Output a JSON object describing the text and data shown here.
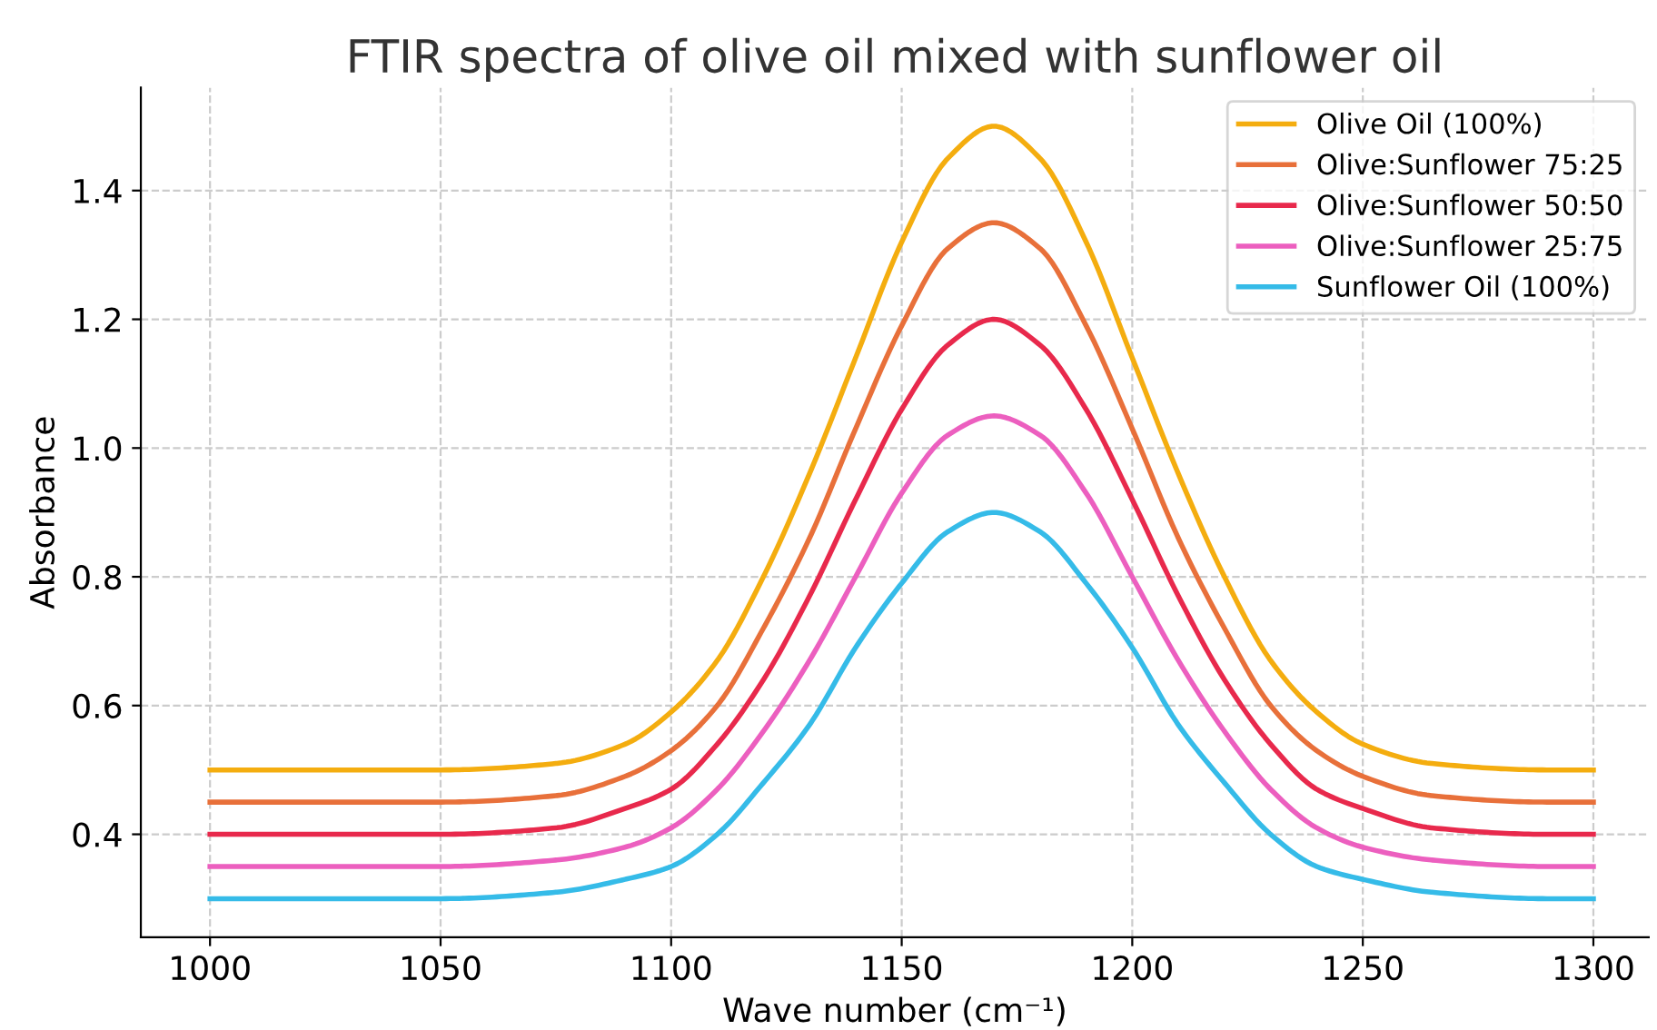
{
  "chart_data": {
    "type": "line",
    "title": "FTIR spectra of olive oil mixed with sunflower oil",
    "xlabel": "Wave number (cm⁻¹)",
    "ylabel": "Absorbance",
    "x": [
      1000,
      1050,
      1075,
      1090,
      1100,
      1110,
      1120,
      1130,
      1140,
      1150,
      1160,
      1170,
      1180,
      1190,
      1200,
      1210,
      1220,
      1230,
      1240,
      1250,
      1265,
      1290,
      1300
    ],
    "series": [
      {
        "name": "Olive Oil (100%)",
        "color": "#f4ad0f",
        "values": [
          0.5,
          0.5,
          0.51,
          0.54,
          0.59,
          0.67,
          0.8,
          0.96,
          1.14,
          1.32,
          1.45,
          1.5,
          1.45,
          1.32,
          1.14,
          0.96,
          0.8,
          0.67,
          0.59,
          0.54,
          0.51,
          0.5,
          0.5
        ]
      },
      {
        "name": "Olive:Sunflower 75:25",
        "color": "#e8703a",
        "values": [
          0.45,
          0.45,
          0.46,
          0.49,
          0.53,
          0.6,
          0.72,
          0.86,
          1.03,
          1.19,
          1.31,
          1.35,
          1.31,
          1.19,
          1.03,
          0.86,
          0.72,
          0.6,
          0.53,
          0.49,
          0.46,
          0.45,
          0.45
        ]
      },
      {
        "name": "Olive:Sunflower 50:50",
        "color": "#e8294c",
        "values": [
          0.4,
          0.4,
          0.41,
          0.44,
          0.47,
          0.54,
          0.64,
          0.77,
          0.92,
          1.06,
          1.16,
          1.2,
          1.16,
          1.06,
          0.92,
          0.77,
          0.64,
          0.54,
          0.47,
          0.44,
          0.41,
          0.4,
          0.4
        ]
      },
      {
        "name": "Olive:Sunflower 25:75",
        "color": "#ec5fbf",
        "values": [
          0.35,
          0.35,
          0.36,
          0.38,
          0.41,
          0.47,
          0.56,
          0.67,
          0.8,
          0.93,
          1.02,
          1.05,
          1.02,
          0.93,
          0.8,
          0.67,
          0.56,
          0.47,
          0.41,
          0.38,
          0.36,
          0.35,
          0.35
        ]
      },
      {
        "name": "Sunflower Oil (100%)",
        "color": "#35bbe8",
        "values": [
          0.3,
          0.3,
          0.31,
          0.33,
          0.35,
          0.4,
          0.48,
          0.57,
          0.69,
          0.79,
          0.87,
          0.9,
          0.87,
          0.79,
          0.69,
          0.57,
          0.48,
          0.4,
          0.35,
          0.33,
          0.31,
          0.3,
          0.3
        ]
      }
    ],
    "xlim": [
      985,
      1312
    ],
    "ylim": [
      0.24,
      1.56
    ],
    "xticks": [
      1000,
      1050,
      1100,
      1150,
      1200,
      1250,
      1300
    ],
    "yticks": [
      0.4,
      0.6,
      0.8,
      {
        "value": 1.0,
        "label": "1.0"
      },
      1.2,
      1.4
    ],
    "grid": true,
    "legend": "top right",
    "line_style": "solid"
  }
}
